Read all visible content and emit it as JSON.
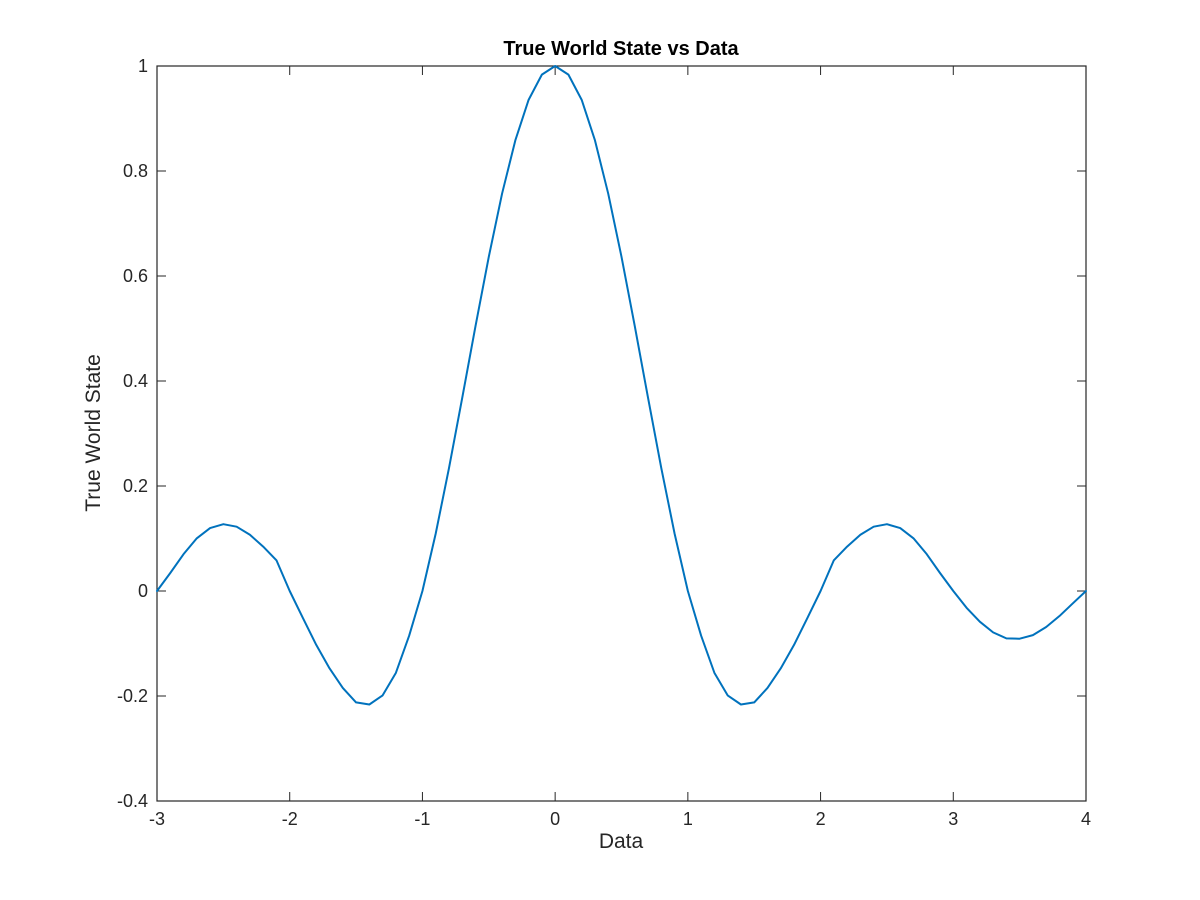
{
  "chart_data": {
    "type": "line",
    "title": "True World State vs Data",
    "xlabel": "Data",
    "ylabel": "True World State",
    "xlim": [
      -3,
      4
    ],
    "ylim": [
      -0.4,
      1
    ],
    "xticks": [
      -3,
      -2,
      -1,
      0,
      1,
      2,
      3,
      4
    ],
    "xtick_labels": [
      "-3",
      "-2",
      "-1",
      "0",
      "1",
      "2",
      "3",
      "4"
    ],
    "yticks": [
      -0.4,
      -0.2,
      0,
      0.2,
      0.4,
      0.6,
      0.8,
      1
    ],
    "ytick_labels": [
      "-0.4",
      "-0.2",
      "0",
      "0.2",
      "0.4",
      "0.6",
      "0.8",
      "1"
    ],
    "grid": false,
    "line_color": "#0072BD",
    "axis_color": "#262626",
    "series": [
      {
        "x": [
          -3.0,
          -2.9,
          -2.8,
          -2.7,
          -2.6,
          -2.5,
          -2.4,
          -2.3,
          -2.2,
          -2.1,
          -2.0,
          -1.9,
          -1.8,
          -1.7,
          -1.6,
          -1.5,
          -1.4,
          -1.3,
          -1.2,
          -1.1,
          -1.0,
          -0.9,
          -0.8,
          -0.7,
          -0.6,
          -0.5,
          -0.4,
          -0.3,
          -0.2,
          -0.1,
          0.0,
          0.1,
          0.2,
          0.3,
          0.4,
          0.5,
          0.6,
          0.7,
          0.8,
          0.9,
          1.0,
          1.1,
          1.2,
          1.3,
          1.4,
          1.5,
          1.6,
          1.7,
          1.8,
          1.9,
          2.0,
          2.1,
          2.2,
          2.3,
          2.4,
          2.5,
          2.6,
          2.7,
          2.8,
          2.9,
          3.0,
          3.1,
          3.2,
          3.3,
          3.4,
          3.5,
          3.6,
          3.7,
          3.8,
          3.9,
          4.0
        ],
        "y": [
          0.0,
          0.0343,
          0.0702,
          0.1004,
          0.1199,
          0.1273,
          0.1225,
          0.1071,
          0.0846,
          0.0585,
          0.0,
          -0.0518,
          -0.1027,
          -0.1473,
          -0.1847,
          -0.2122,
          -0.2162,
          -0.1989,
          -0.1559,
          -0.0851,
          0.0,
          0.1093,
          0.2339,
          0.3679,
          0.5046,
          0.6366,
          0.7568,
          0.8584,
          0.9355,
          0.9836,
          1.0,
          0.9836,
          0.9355,
          0.8584,
          0.7568,
          0.6366,
          0.5046,
          0.3679,
          0.2339,
          0.1093,
          0.0,
          -0.0851,
          -0.1559,
          -0.1989,
          -0.2162,
          -0.2122,
          -0.1847,
          -0.1473,
          -0.1027,
          -0.0518,
          0.0,
          0.0585,
          0.0846,
          0.1071,
          0.1225,
          0.1273,
          0.1199,
          0.1004,
          0.0702,
          0.0343,
          0.0,
          -0.032,
          -0.0585,
          -0.0788,
          -0.0902,
          -0.0909,
          -0.0841,
          -0.0686,
          -0.0477,
          -0.0237,
          0.0
        ]
      }
    ]
  }
}
